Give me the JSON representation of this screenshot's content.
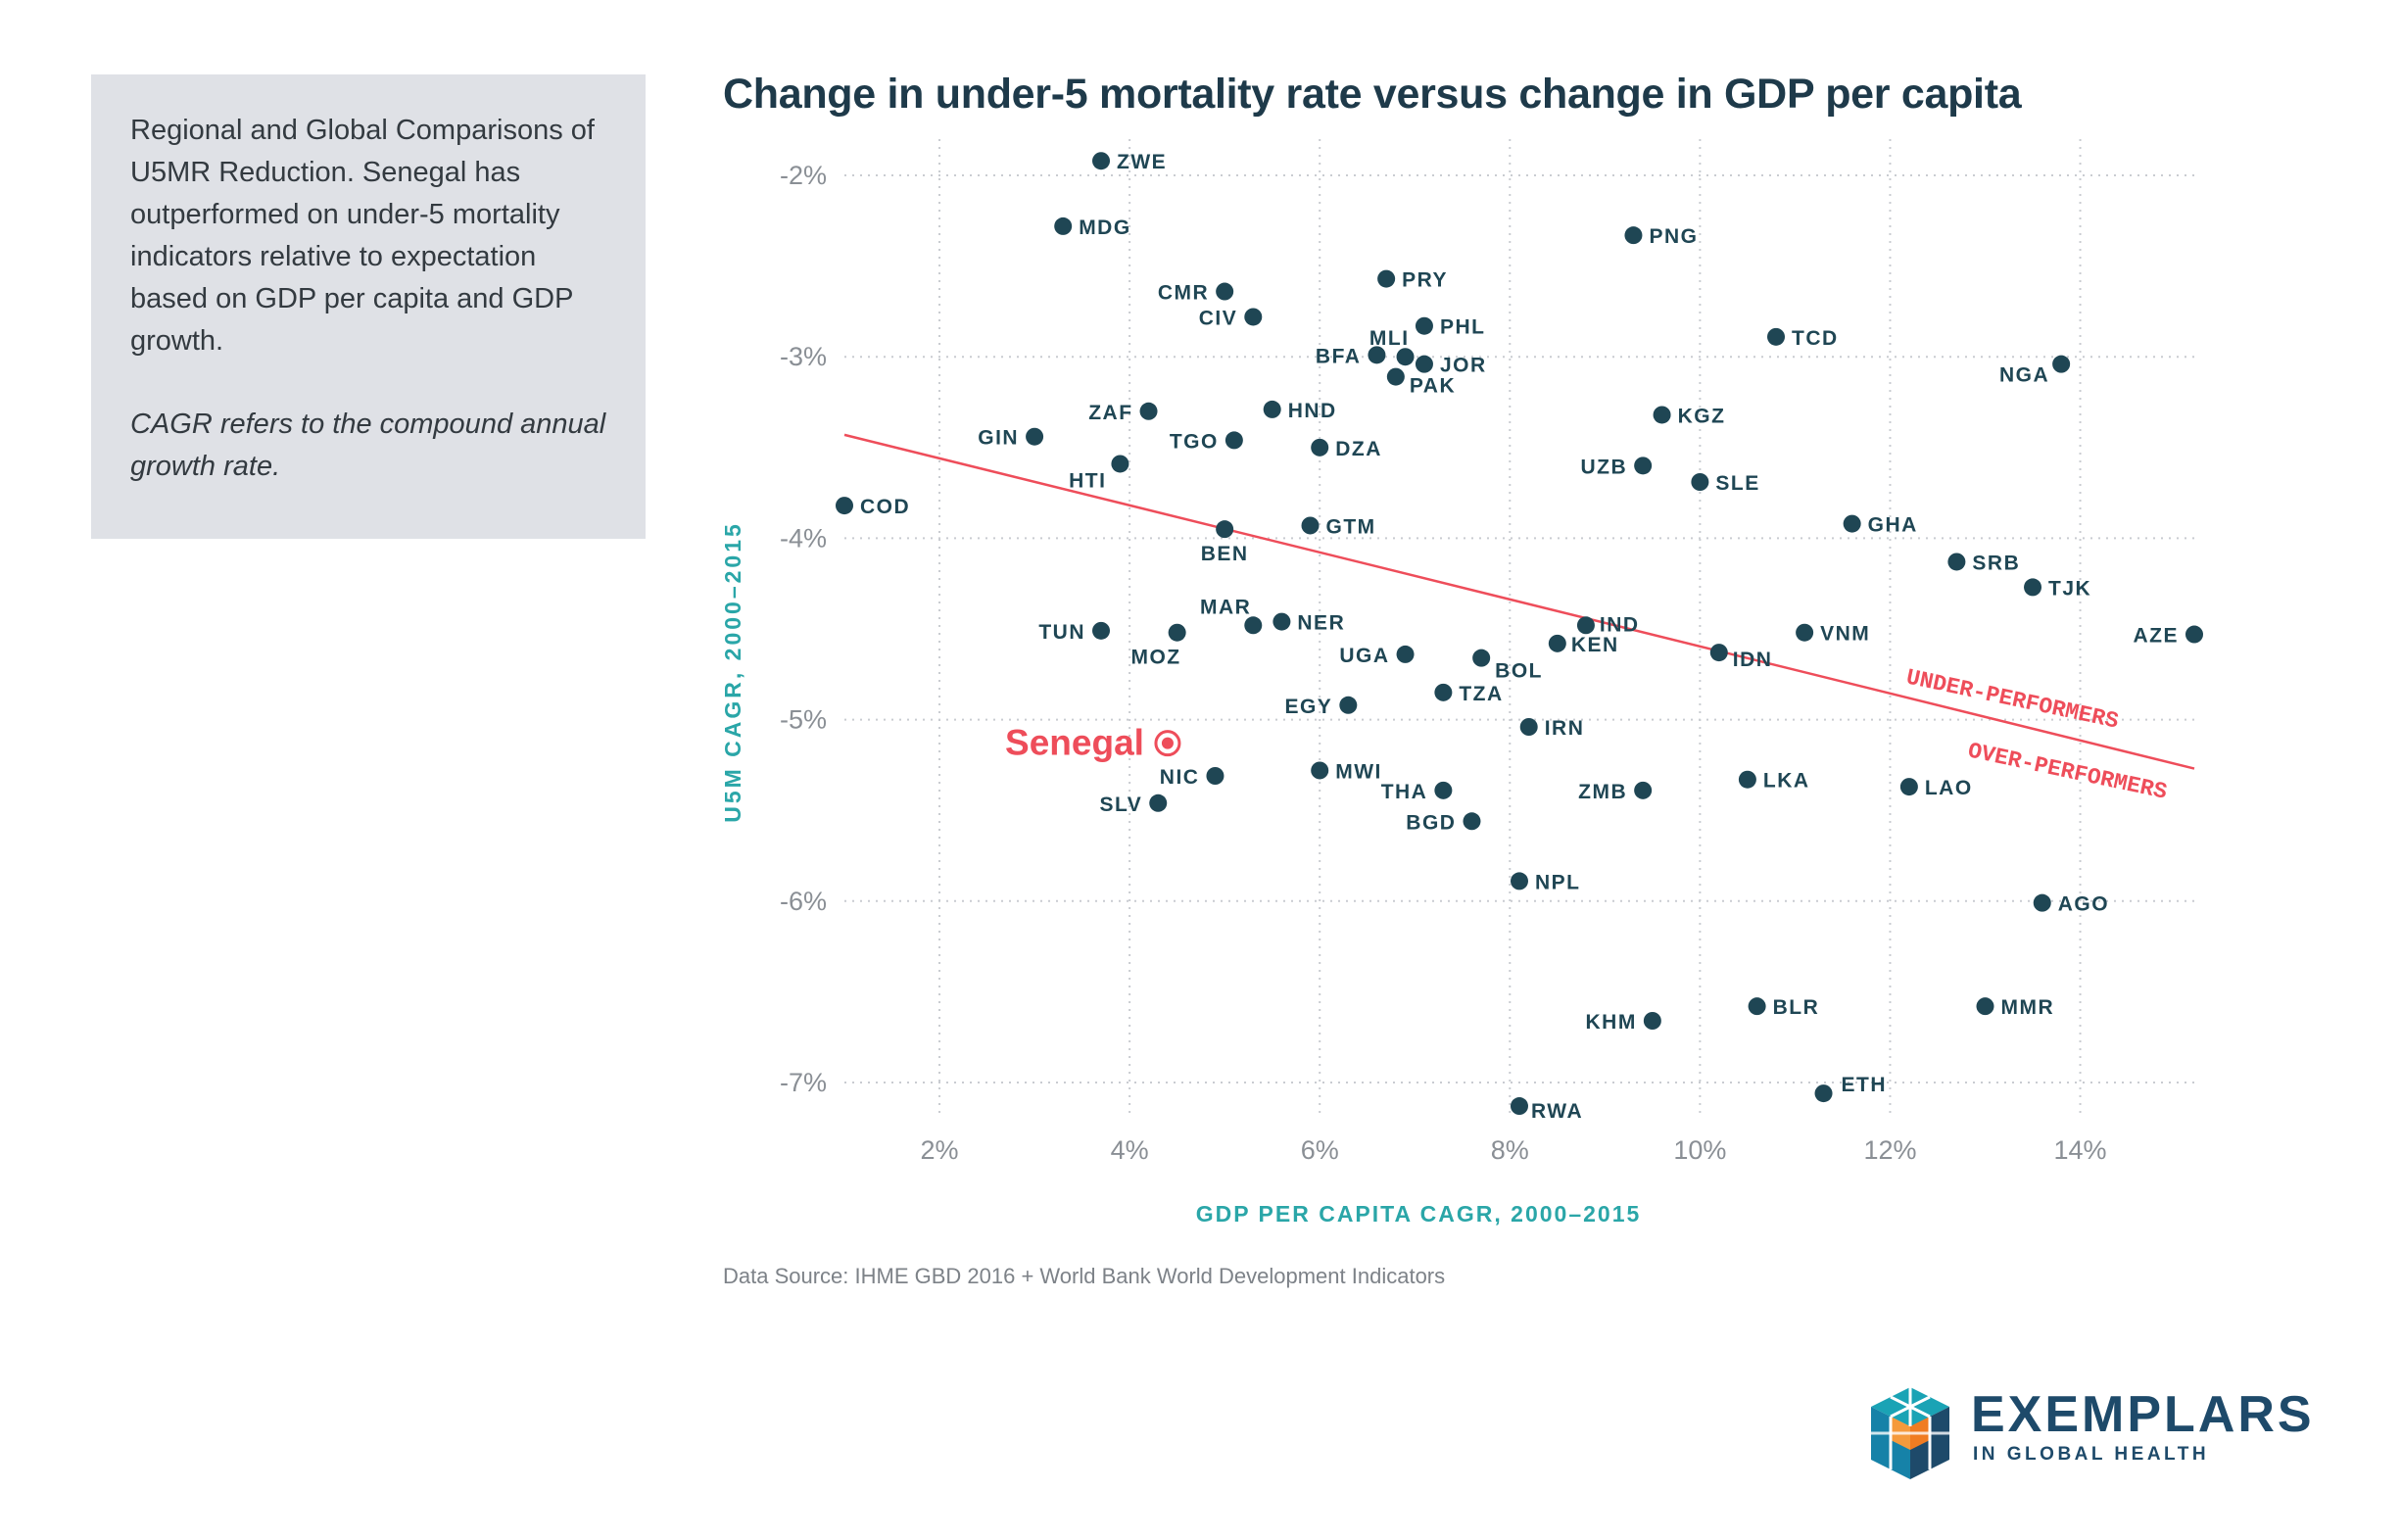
{
  "note": {
    "text": "Regional and Global Comparisons of U5MR Reduction. Senegal has outperformed on under-5 mortality indicators relative to expectation based on GDP per capita and GDP growth.",
    "cagr_note": "CAGR refers to the compound annual growth rate."
  },
  "source": "Data Source: IHME GBD 2016 + World Bank World Development Indicators",
  "logo": {
    "name": "EXEMPLARS",
    "subtitle": "IN GLOBAL HEALTH"
  },
  "colors": {
    "point": "#1f4654",
    "highlight": "#ee4d5a",
    "axis_label": "#2aa6a8",
    "tick": "#8a8f95",
    "grid": "#c9ccd1",
    "title": "#1e3a4a",
    "logo_orange": "#f07c22",
    "logo_teal": "#1aa3b5"
  },
  "chart_data": {
    "type": "scatter",
    "title": "Change in under-5 mortality rate versus change in GDP per capita",
    "xlabel": "GDP PER CAPITA CAGR, 2000–2015",
    "ylabel": "U5M CAGR, 2000–2015",
    "x_unit": "%",
    "y_unit": "%",
    "xlim": [
      1.0,
      15.2
    ],
    "ylim": [
      -7.2,
      -1.8
    ],
    "xticks": [
      2,
      4,
      6,
      8,
      10,
      12,
      14
    ],
    "xtick_labels": [
      "2%",
      "4%",
      "6%",
      "8%",
      "10%",
      "12%",
      "14%"
    ],
    "yticks": [
      -2,
      -3,
      -4,
      -5,
      -6,
      -7
    ],
    "ytick_labels": [
      "-2%",
      "-3%",
      "-4%",
      "-5%",
      "-6%",
      "-7%"
    ],
    "grid": true,
    "trend_line": {
      "x": [
        1.0,
        15.2
      ],
      "y": [
        -3.43,
        -5.27
      ]
    },
    "annotations": [
      "UNDER-PERFORMERS",
      "OVER-PERFORMERS"
    ],
    "highlight": {
      "label": "Senegal",
      "x": 4.4,
      "y": -5.13
    },
    "points": [
      {
        "label": "ZWE",
        "x": 3.7,
        "y": -1.92
      },
      {
        "label": "MDG",
        "x": 3.3,
        "y": -2.28
      },
      {
        "label": "CMR",
        "x": 5.0,
        "y": -2.64
      },
      {
        "label": "CIV",
        "x": 5.3,
        "y": -2.78
      },
      {
        "label": "PRY",
        "x": 6.7,
        "y": -2.57
      },
      {
        "label": "PHL",
        "x": 7.1,
        "y": -2.83
      },
      {
        "label": "MLI",
        "x": 6.9,
        "y": -3.0
      },
      {
        "label": "BFA",
        "x": 6.6,
        "y": -2.99
      },
      {
        "label": "JOR",
        "x": 7.1,
        "y": -3.04
      },
      {
        "label": "PAK",
        "x": 6.8,
        "y": -3.11
      },
      {
        "label": "PNG",
        "x": 9.3,
        "y": -2.33
      },
      {
        "label": "TCD",
        "x": 10.8,
        "y": -2.89
      },
      {
        "label": "NGA",
        "x": 13.8,
        "y": -3.04
      },
      {
        "label": "ZAF",
        "x": 4.2,
        "y": -3.3
      },
      {
        "label": "HND",
        "x": 5.5,
        "y": -3.29
      },
      {
        "label": "GIN",
        "x": 3.0,
        "y": -3.44
      },
      {
        "label": "TGO",
        "x": 5.1,
        "y": -3.46
      },
      {
        "label": "DZA",
        "x": 6.0,
        "y": -3.5
      },
      {
        "label": "KGZ",
        "x": 9.6,
        "y": -3.32
      },
      {
        "label": "HTI",
        "x": 3.9,
        "y": -3.59
      },
      {
        "label": "UZB",
        "x": 9.4,
        "y": -3.6
      },
      {
        "label": "SLE",
        "x": 10.0,
        "y": -3.69
      },
      {
        "label": "COD",
        "x": 1.0,
        "y": -3.82
      },
      {
        "label": "GTM",
        "x": 5.9,
        "y": -3.93
      },
      {
        "label": "BEN",
        "x": 5.0,
        "y": -3.95
      },
      {
        "label": "GHA",
        "x": 11.6,
        "y": -3.92
      },
      {
        "label": "SRB",
        "x": 12.7,
        "y": -4.13
      },
      {
        "label": "TJK",
        "x": 13.5,
        "y": -4.27
      },
      {
        "label": "MAR",
        "x": 5.3,
        "y": -4.48
      },
      {
        "label": "NER",
        "x": 5.6,
        "y": -4.46
      },
      {
        "label": "TUN",
        "x": 3.7,
        "y": -4.51
      },
      {
        "label": "MOZ",
        "x": 4.5,
        "y": -4.52
      },
      {
        "label": "IND",
        "x": 8.8,
        "y": -4.48
      },
      {
        "label": "KEN",
        "x": 8.5,
        "y": -4.58
      },
      {
        "label": "VNM",
        "x": 11.1,
        "y": -4.52
      },
      {
        "label": "AZE",
        "x": 15.2,
        "y": -4.53
      },
      {
        "label": "UGA",
        "x": 6.9,
        "y": -4.64
      },
      {
        "label": "BOL",
        "x": 7.7,
        "y": -4.66
      },
      {
        "label": "IDN",
        "x": 10.2,
        "y": -4.63
      },
      {
        "label": "TZA",
        "x": 7.3,
        "y": -4.85
      },
      {
        "label": "EGY",
        "x": 6.3,
        "y": -4.92
      },
      {
        "label": "IRN",
        "x": 8.2,
        "y": -5.04
      },
      {
        "label": "NIC",
        "x": 4.9,
        "y": -5.31
      },
      {
        "label": "MWI",
        "x": 6.0,
        "y": -5.28
      },
      {
        "label": "THA",
        "x": 7.3,
        "y": -5.39
      },
      {
        "label": "ZMB",
        "x": 9.4,
        "y": -5.39
      },
      {
        "label": "LKA",
        "x": 10.5,
        "y": -5.33
      },
      {
        "label": "LAO",
        "x": 12.2,
        "y": -5.37
      },
      {
        "label": "SLV",
        "x": 4.3,
        "y": -5.46
      },
      {
        "label": "BGD",
        "x": 7.6,
        "y": -5.56
      },
      {
        "label": "NPL",
        "x": 8.1,
        "y": -5.89
      },
      {
        "label": "AGO",
        "x": 13.6,
        "y": -6.01
      },
      {
        "label": "BLR",
        "x": 10.6,
        "y": -6.58
      },
      {
        "label": "MMR",
        "x": 13.0,
        "y": -6.58
      },
      {
        "label": "KHM",
        "x": 9.5,
        "y": -6.66
      },
      {
        "label": "ETH",
        "x": 11.3,
        "y": -7.06
      },
      {
        "label": "RWA",
        "x": 8.1,
        "y": -7.13
      }
    ]
  }
}
